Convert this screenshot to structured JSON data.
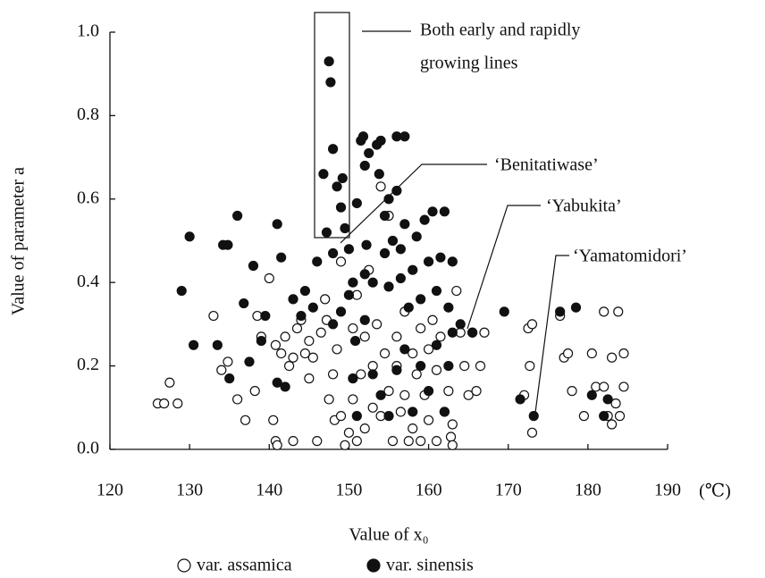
{
  "chart_data": {
    "type": "scatter",
    "y_label": "Value of parameter a",
    "x_label": "Value of x₀",
    "x_unit": "(℃)",
    "xlim": [
      120,
      190
    ],
    "ylim": [
      0,
      1
    ],
    "xticks": [
      120,
      130,
      140,
      150,
      160,
      170,
      180,
      190
    ],
    "yticks": [
      {
        "value": 0,
        "label": "0.0"
      },
      0.2,
      0.4,
      0.6,
      0.8,
      {
        "value": 1,
        "label": "1.0"
      }
    ],
    "annotations": [
      "Both early and rapidly",
      "growing lines",
      "‘Benitatiwase’",
      "‘Yabukita’",
      "‘Yamatomidori’"
    ],
    "series": [
      {
        "name": "var. assamica",
        "color": "#ffffff",
        "x": [
          126,
          126.8,
          127.5,
          128.5,
          133,
          134,
          134.8,
          136,
          137,
          138.2,
          138.5,
          139,
          140,
          140.5,
          140.8,
          141,
          140.8,
          141.5,
          142,
          142.5,
          143,
          143,
          143.5,
          144,
          144.5,
          145,
          145,
          145.5,
          146,
          146.5,
          147,
          147.2,
          147.5,
          148,
          148.2,
          148.5,
          149,
          149,
          149.5,
          150,
          150.5,
          150.5,
          151,
          151,
          151.5,
          152,
          152,
          152.5,
          153,
          153,
          153.5,
          154,
          154,
          154.5,
          155,
          155,
          155.5,
          156,
          156,
          156.5,
          157,
          157,
          157.5,
          158,
          158,
          158.5,
          159,
          159,
          159.5,
          160,
          160,
          160.5,
          161,
          161,
          161.5,
          162,
          162.5,
          162.8,
          163,
          163,
          163.5,
          164,
          164.5,
          165,
          165.5,
          166,
          166.5,
          167,
          172,
          172.5,
          172.7,
          173,
          173,
          176.5,
          177,
          177.5,
          178,
          179.5,
          180.5,
          181,
          182,
          182,
          182.5,
          183,
          183,
          183.5,
          183.8,
          184,
          184.5,
          184.5
        ],
        "values": [
          0.11,
          0.11,
          0.16,
          0.11,
          0.32,
          0.19,
          0.21,
          0.12,
          0.07,
          0.14,
          0.32,
          0.27,
          0.41,
          0.07,
          0.02,
          0.01,
          0.25,
          0.23,
          0.27,
          0.2,
          0.22,
          0.02,
          0.29,
          0.31,
          0.23,
          0.26,
          0.17,
          0.22,
          0.02,
          0.28,
          0.36,
          0.31,
          0.12,
          0.18,
          0.07,
          0.24,
          0.45,
          0.08,
          0.01,
          0.04,
          0.29,
          0.12,
          0.02,
          0.37,
          0.18,
          0.27,
          0.05,
          0.43,
          0.2,
          0.1,
          0.3,
          0.63,
          0.08,
          0.23,
          0.56,
          0.14,
          0.02,
          0.27,
          0.2,
          0.09,
          0.33,
          0.13,
          0.02,
          0.23,
          0.05,
          0.18,
          0.29,
          0.02,
          0.13,
          0.24,
          0.07,
          0.31,
          0.02,
          0.19,
          0.27,
          0.09,
          0.14,
          0.03,
          0.01,
          0.06,
          0.38,
          0.28,
          0.2,
          0.13,
          0.28,
          0.14,
          0.2,
          0.28,
          0.13,
          0.29,
          0.2,
          0.04,
          0.3,
          0.32,
          0.22,
          0.23,
          0.14,
          0.08,
          0.23,
          0.15,
          0.33,
          0.15,
          0.08,
          0.22,
          0.06,
          0.11,
          0.33,
          0.08,
          0.23,
          0.15
        ]
      },
      {
        "name": "var. sinensis",
        "color": "#111111",
        "x": [
          129,
          130,
          130.5,
          133.5,
          134.2,
          134.8,
          135,
          136,
          136.8,
          137.5,
          138,
          139,
          139.5,
          141,
          141,
          141.5,
          142,
          143,
          144,
          144.5,
          145.5,
          146,
          146.8,
          147.2,
          147.5,
          147.7,
          148,
          148,
          148.5,
          149,
          149.2,
          149.5,
          150,
          150.5,
          150.8,
          151,
          151.5,
          151.8,
          152,
          152.2,
          152.5,
          153,
          153.5,
          153.8,
          154,
          154.5,
          155,
          155.5,
          156,
          156,
          156.5,
          157,
          157,
          157.5,
          158,
          158.5,
          159,
          159.5,
          160,
          160.5,
          161,
          161.5,
          162,
          162.5,
          163,
          150.5,
          151,
          152,
          153,
          154,
          155,
          156,
          157,
          158,
          159,
          160,
          161,
          162,
          162.5,
          163,
          164,
          165.5,
          169.5,
          171.5,
          173.2,
          176.5,
          178.5,
          180.5,
          182,
          182.5,
          148,
          149,
          150,
          155,
          152,
          154.5,
          156.5
        ],
        "values": [
          0.38,
          0.51,
          0.25,
          0.25,
          0.49,
          0.49,
          0.17,
          0.56,
          0.35,
          0.21,
          0.44,
          0.26,
          0.32,
          0.54,
          0.16,
          0.46,
          0.15,
          0.36,
          0.32,
          0.38,
          0.34,
          0.45,
          0.66,
          0.52,
          0.93,
          0.88,
          0.72,
          0.47,
          0.63,
          0.58,
          0.65,
          0.53,
          0.48,
          0.4,
          0.26,
          0.59,
          0.74,
          0.75,
          0.68,
          0.49,
          0.71,
          0.4,
          0.73,
          0.66,
          0.74,
          0.56,
          0.6,
          0.5,
          0.75,
          0.62,
          0.41,
          0.75,
          0.54,
          0.34,
          0.43,
          0.51,
          0.36,
          0.55,
          0.45,
          0.57,
          0.38,
          0.46,
          0.57,
          0.34,
          0.45,
          0.17,
          0.08,
          0.31,
          0.18,
          0.13,
          0.08,
          0.19,
          0.24,
          0.09,
          0.2,
          0.14,
          0.25,
          0.09,
          0.2,
          0.28,
          0.3,
          0.28,
          0.33,
          0.12,
          0.08,
          0.33,
          0.34,
          0.13,
          0.08,
          0.12,
          0.3,
          0.33,
          0.37,
          0.39,
          0.42,
          0.47,
          0.48
        ]
      }
    ]
  }
}
